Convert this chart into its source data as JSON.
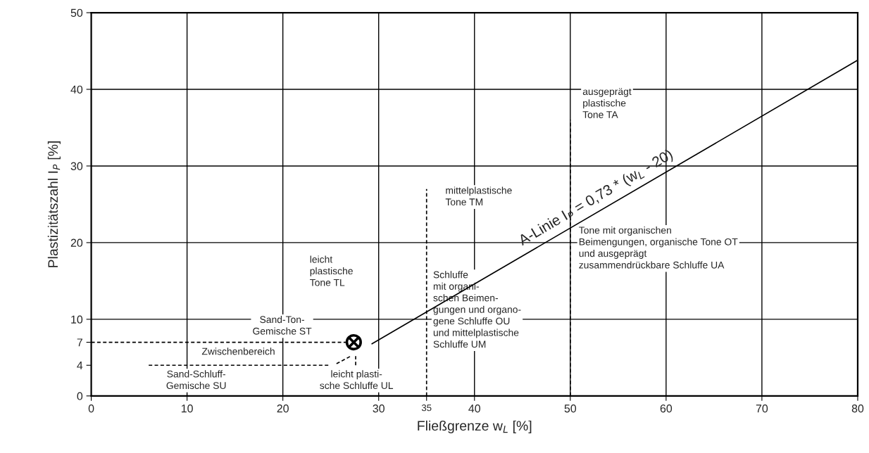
{
  "chart_data": {
    "type": "line",
    "xlabel": "Fließgrenze w$_{L}$ [%]",
    "ylabel": "Plastizitätszahl I$_{P}$ [%]",
    "xlim": [
      0,
      80
    ],
    "ylim": [
      0,
      50
    ],
    "xticks": [
      0,
      10,
      20,
      30,
      {
        "value": 35,
        "label": "35"
      },
      40,
      50,
      60,
      70,
      80
    ],
    "yticks": [
      0,
      {
        "value": 4,
        "label": "4"
      },
      {
        "value": 7,
        "label": "7"
      },
      10,
      20,
      30,
      40,
      50
    ],
    "grid": true,
    "series": [
      {
        "color": "#000000",
        "line_style": "solid",
        "x": [
          29.3,
          80
        ],
        "values": [
          6.8,
          43.8
        ]
      },
      {
        "color": "#000000",
        "line_style": "dashed",
        "x": [
          0,
          26.6
        ],
        "values": [
          7.0,
          7.0
        ]
      },
      {
        "color": "#000000",
        "line_style": "dashed",
        "x": [
          6.0,
          24.8
        ],
        "values": [
          4.0,
          4.0
        ]
      },
      {
        "color": "#000000",
        "line_style": "dashed",
        "x": [
          25.6,
          27.1
        ],
        "values": [
          4.2,
          5.2
        ]
      },
      {
        "color": "#000000",
        "line_style": "dashed",
        "x": [
          27.6,
          27.6
        ],
        "values": [
          4.0,
          5.2
        ]
      },
      {
        "color": "#000000",
        "line_style": "dashed",
        "x": [
          35,
          35
        ],
        "values": [
          0,
          27
        ]
      },
      {
        "color": "#000000",
        "line_style": "dashed",
        "x": [
          50,
          50
        ],
        "values": [
          0,
          36
        ]
      },
      {
        "type": "scatter",
        "color": "#000000",
        "marker": "cross",
        "x": [
          27.4
        ],
        "values": [
          7.0
        ]
      }
    ],
    "annotations": [
      "A-Linie I$_{P}$ = 0,73 * (w$_{L}$ - 20)",
      "ausgeprägt\nplastische\nTone TA",
      "mittelplastische\nTone TM",
      "Tone mit organischen\nBeimengungen, organische Tone OT\nund ausgeprägt\nzusammendrückbare Schluffe UA",
      "leicht\nplastische\nTone TL",
      "Schluffe\nmit organi-\nschen Beimen-\ngungen und organo-\ngene Schluffe OU\nund mittelplastische\nSchluffe UM",
      "Sand-Ton-\nGemische ST",
      "Zwischenbereich",
      "Sand-Schluff-\nGemische SU",
      "leicht plasti-\nsche Schluffe UL"
    ]
  }
}
